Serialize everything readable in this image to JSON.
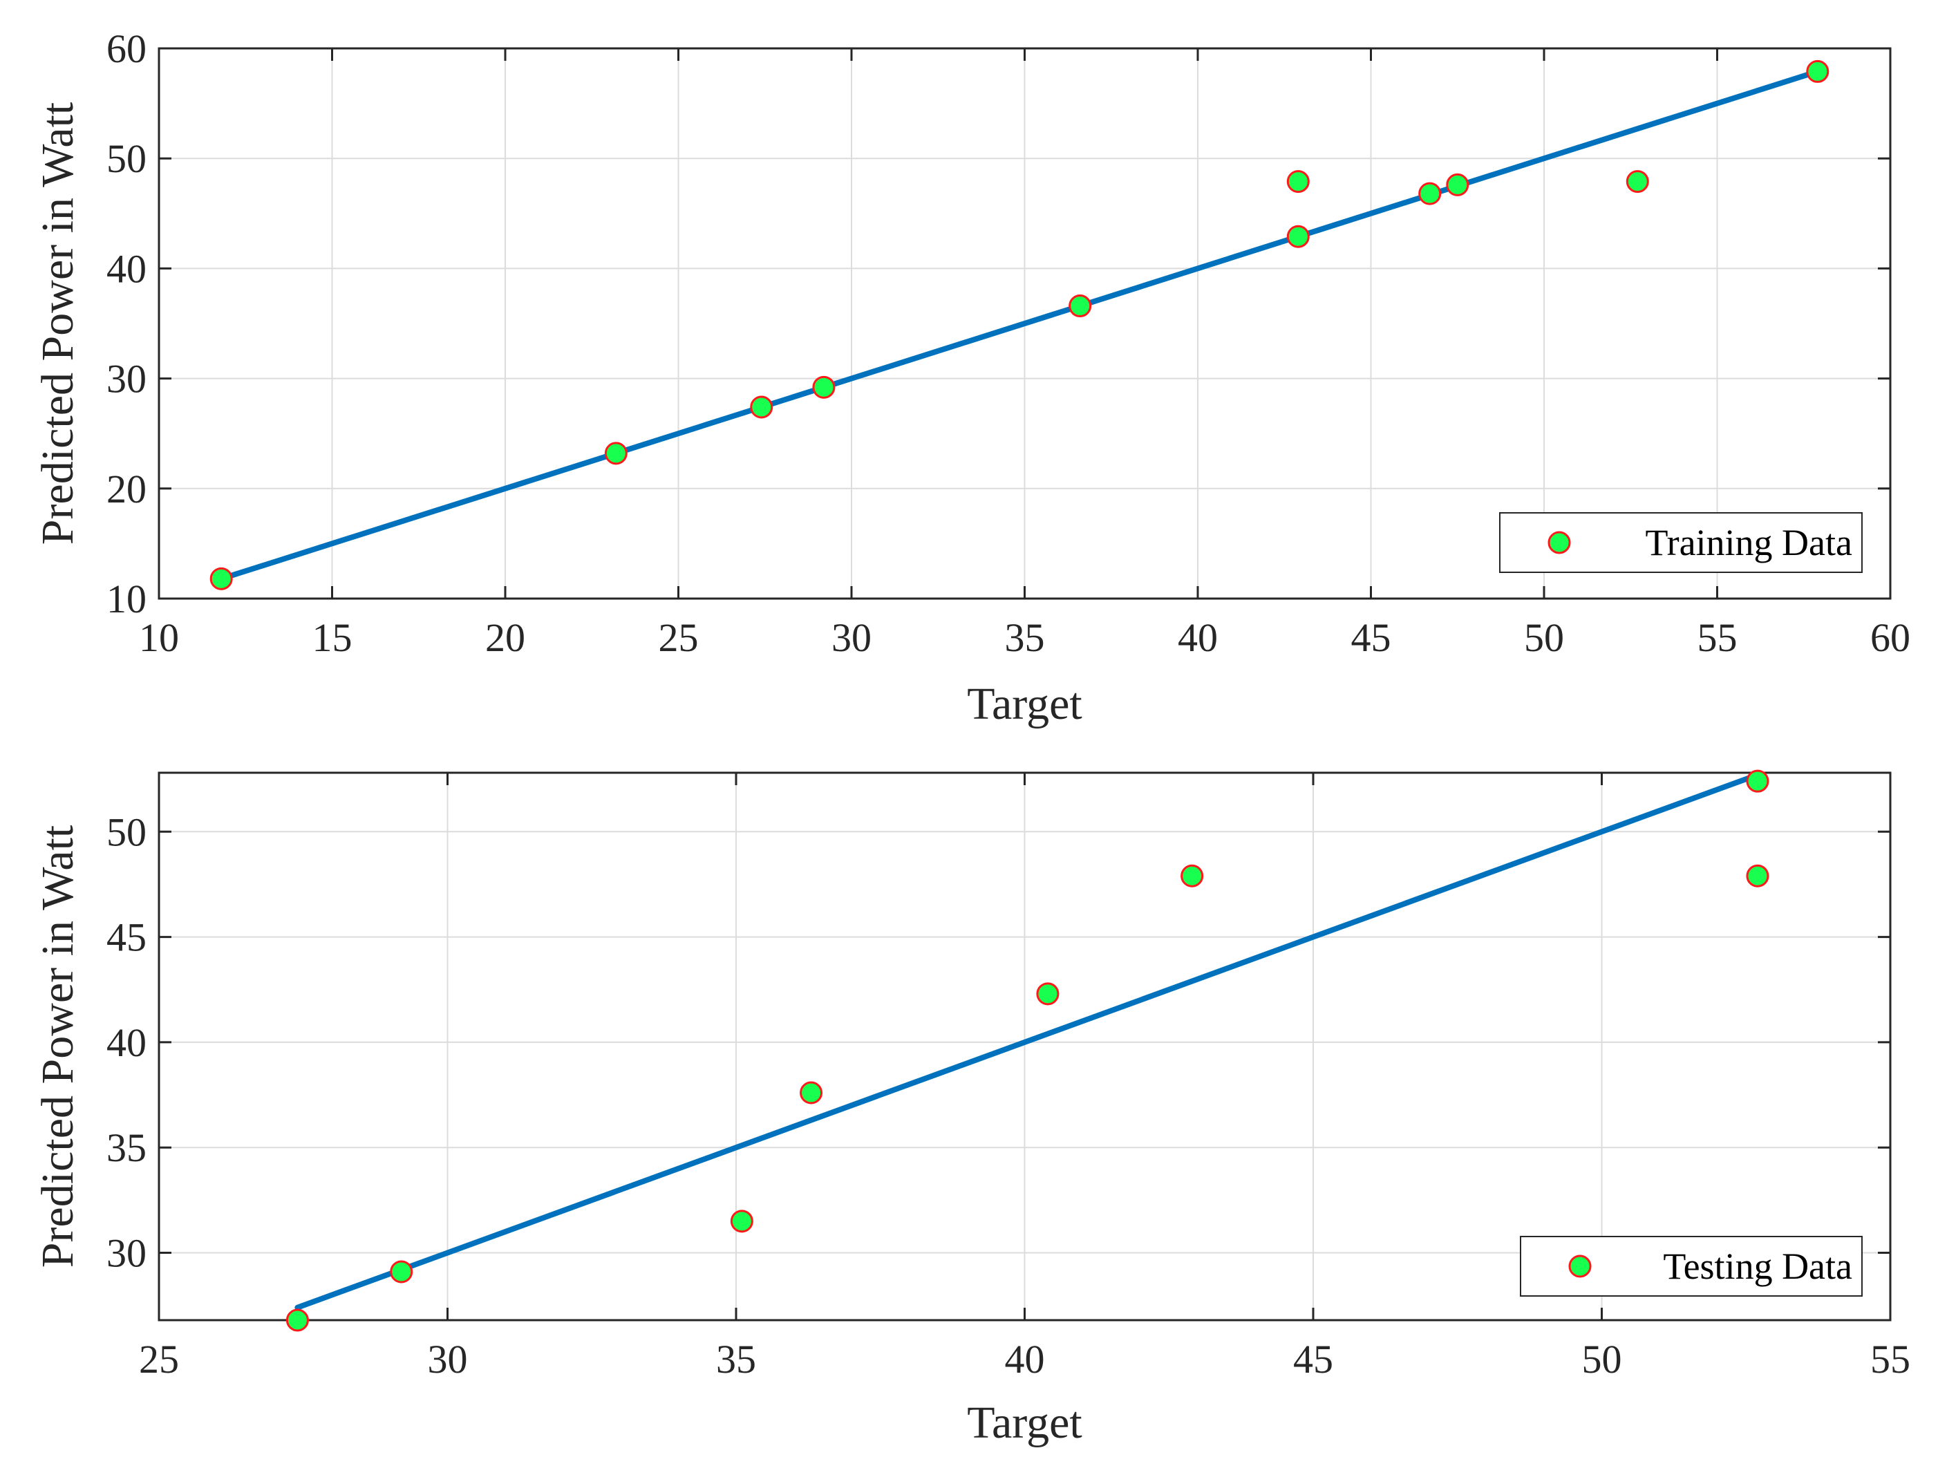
{
  "chart_data": [
    {
      "type": "scatter",
      "xlabel": "Target",
      "ylabel": "Predicted Power in Watt",
      "xlim": [
        10,
        60
      ],
      "ylim": [
        10,
        60
      ],
      "xticks": [
        "10",
        "15",
        "20",
        "25",
        "30",
        "35",
        "40",
        "45",
        "50",
        "55",
        "60"
      ],
      "yticks": [
        "10",
        "20",
        "30",
        "40",
        "50",
        "60"
      ],
      "grid": true,
      "legend_position": "bottom-right",
      "series": [
        {
          "name": "Training Data",
          "marker": "circle",
          "face_color": "#19ff4f",
          "edge_color": "#ff1a1a",
          "points": [
            {
              "x": 11.8,
              "y": 11.8
            },
            {
              "x": 23.2,
              "y": 23.2
            },
            {
              "x": 27.4,
              "y": 27.4
            },
            {
              "x": 29.2,
              "y": 29.2
            },
            {
              "x": 36.6,
              "y": 36.6
            },
            {
              "x": 42.9,
              "y": 42.9
            },
            {
              "x": 42.9,
              "y": 47.9
            },
            {
              "x": 46.7,
              "y": 46.8
            },
            {
              "x": 47.5,
              "y": 47.6
            },
            {
              "x": 52.7,
              "y": 47.9
            },
            {
              "x": 57.9,
              "y": 57.9
            }
          ]
        }
      ],
      "fit_line": {
        "color": "#0072bd",
        "x": [
          11.8,
          57.9
        ],
        "y": [
          11.8,
          57.9
        ]
      }
    },
    {
      "type": "scatter",
      "xlabel": "Target",
      "ylabel": "Predicted Power in Watt",
      "xlim": [
        25,
        55
      ],
      "ylim": [
        26.8,
        52.8
      ],
      "xticks": [
        "25",
        "30",
        "35",
        "40",
        "45",
        "50",
        "55"
      ],
      "yticks": [
        "30",
        "35",
        "40",
        "45",
        "50"
      ],
      "grid": true,
      "legend_position": "bottom-right",
      "series": [
        {
          "name": "Testing Data",
          "marker": "circle",
          "face_color": "#19ff4f",
          "edge_color": "#ff1a1a",
          "points": [
            {
              "x": 27.4,
              "y": 26.8
            },
            {
              "x": 29.2,
              "y": 29.1
            },
            {
              "x": 35.1,
              "y": 31.5
            },
            {
              "x": 36.3,
              "y": 37.6
            },
            {
              "x": 40.4,
              "y": 42.3
            },
            {
              "x": 42.9,
              "y": 47.9
            },
            {
              "x": 52.7,
              "y": 47.9
            },
            {
              "x": 52.7,
              "y": 52.4
            }
          ]
        }
      ],
      "fit_line": {
        "color": "#0072bd",
        "x": [
          27.4,
          52.7
        ],
        "y": [
          27.4,
          52.7
        ]
      }
    }
  ]
}
